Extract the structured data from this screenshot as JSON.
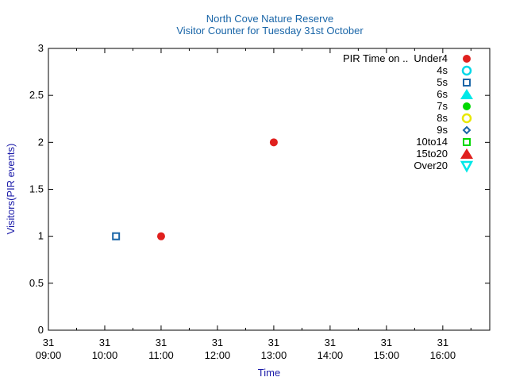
{
  "chart_data": {
    "type": "scatter",
    "title": "North Cove Nature Reserve",
    "subtitle": "Visitor Counter for Tuesday 31st October",
    "xlabel": "Time",
    "ylabel": "Visitors(PIR events)",
    "x_ticks": [
      {
        "day": "31",
        "time": "09:00"
      },
      {
        "day": "31",
        "time": "10:00"
      },
      {
        "day": "31",
        "time": "11:00"
      },
      {
        "day": "31",
        "time": "12:00"
      },
      {
        "day": "31",
        "time": "13:00"
      },
      {
        "day": "31",
        "time": "14:00"
      },
      {
        "day": "31",
        "time": "15:00"
      },
      {
        "day": "31",
        "time": "16:00"
      }
    ],
    "xlim": [
      "09:00",
      "16:50"
    ],
    "ylim": [
      0,
      3
    ],
    "y_ticks": [
      "0",
      "0.5",
      "1",
      "1.5",
      "2",
      "2.5",
      "3"
    ],
    "legend_title": "PIR Time on ..",
    "legend_position": "top-right",
    "grid": false,
    "series": [
      {
        "name": "Under4",
        "marker": "circle-filled",
        "color": "#e0201e",
        "points": [
          {
            "x": "11:00",
            "y": 1
          },
          {
            "x": "13:00",
            "y": 2
          }
        ]
      },
      {
        "name": "4s",
        "marker": "circle-open",
        "color": "#00d8e8",
        "points": []
      },
      {
        "name": "5s",
        "marker": "square-open",
        "color": "#1a66a8",
        "points": [
          {
            "x": "10:12",
            "y": 1
          }
        ]
      },
      {
        "name": "6s",
        "marker": "triangle-up-filled",
        "color": "#00e8e8",
        "points": []
      },
      {
        "name": "7s",
        "marker": "circle-filled",
        "color": "#00d800",
        "points": []
      },
      {
        "name": "8s",
        "marker": "circle-open",
        "color": "#e8e800",
        "points": []
      },
      {
        "name": "9s",
        "marker": "diamond-open",
        "color": "#1a66a8",
        "points": []
      },
      {
        "name": "10to14",
        "marker": "square-open",
        "color": "#00d800",
        "points": []
      },
      {
        "name": "15to20",
        "marker": "triangle-up-filled",
        "color": "#e0201e",
        "points": []
      },
      {
        "name": "Over20",
        "marker": "triangle-down-open",
        "color": "#00e8e8",
        "points": []
      }
    ]
  }
}
